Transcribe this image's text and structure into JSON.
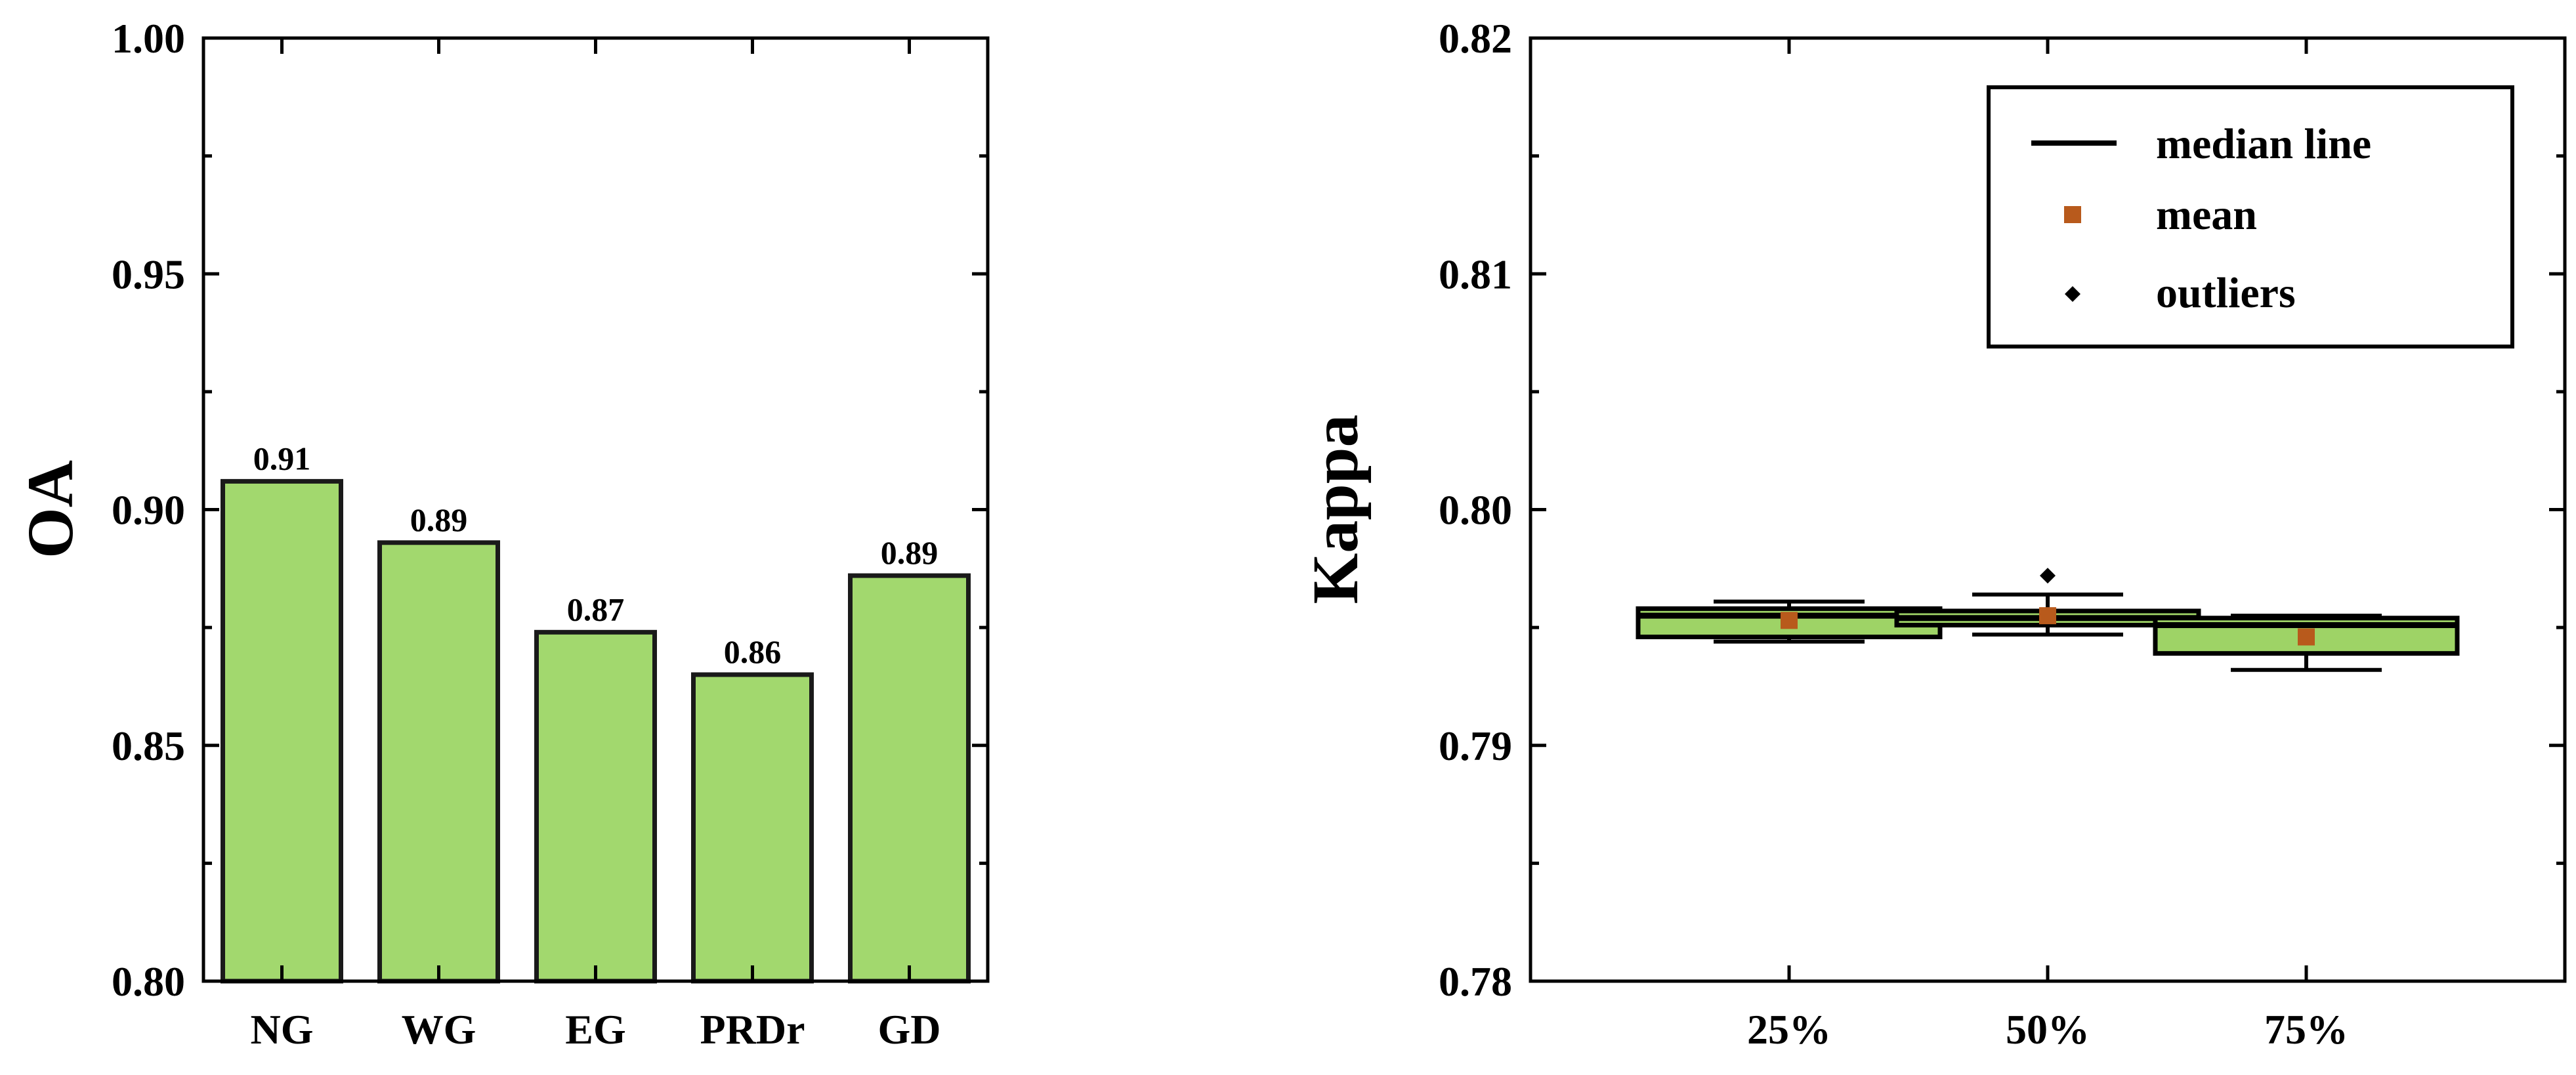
{
  "colors": {
    "bar_fill": "#A2D86E",
    "box_fill": "#9ED366",
    "mean_marker": "#B85A1C",
    "outlier_marker": "#000000"
  },
  "chart_data": [
    {
      "type": "bar",
      "ylabel": "OA",
      "ylim": [
        0.8,
        1.0
      ],
      "yticks": [
        "0.80",
        "0.85",
        "0.90",
        "0.95",
        "1.00"
      ],
      "categories": [
        "NG",
        "WG",
        "EG",
        "PRDr",
        "GD"
      ],
      "values": [
        0.906,
        0.893,
        0.874,
        0.865,
        0.886
      ],
      "data_labels": [
        "0.91",
        "0.89",
        "0.87",
        "0.86",
        "0.89"
      ]
    },
    {
      "type": "box",
      "ylabel": "Kappa",
      "ylim": [
        0.78,
        0.82
      ],
      "yticks": [
        "0.78",
        "0.79",
        "0.80",
        "0.81",
        "0.82"
      ],
      "categories": [
        "25%",
        "50%",
        "75%"
      ],
      "boxes": [
        {
          "q1": 0.7946,
          "median": 0.7955,
          "q3": 0.7958,
          "whisker_low": 0.7944,
          "whisker_high": 0.7961,
          "mean": 0.7953,
          "outliers": []
        },
        {
          "q1": 0.7951,
          "median": 0.7954,
          "q3": 0.7957,
          "whisker_low": 0.7947,
          "whisker_high": 0.7964,
          "mean": 0.7955,
          "outliers": [
            0.7972
          ]
        },
        {
          "q1": 0.7939,
          "median": 0.7951,
          "q3": 0.7954,
          "whisker_low": 0.7932,
          "whisker_high": 0.7955,
          "mean": 0.7946,
          "outliers": []
        }
      ],
      "legend": {
        "items": [
          "median line",
          "mean",
          "outliers"
        ],
        "position": "top-right"
      }
    }
  ]
}
